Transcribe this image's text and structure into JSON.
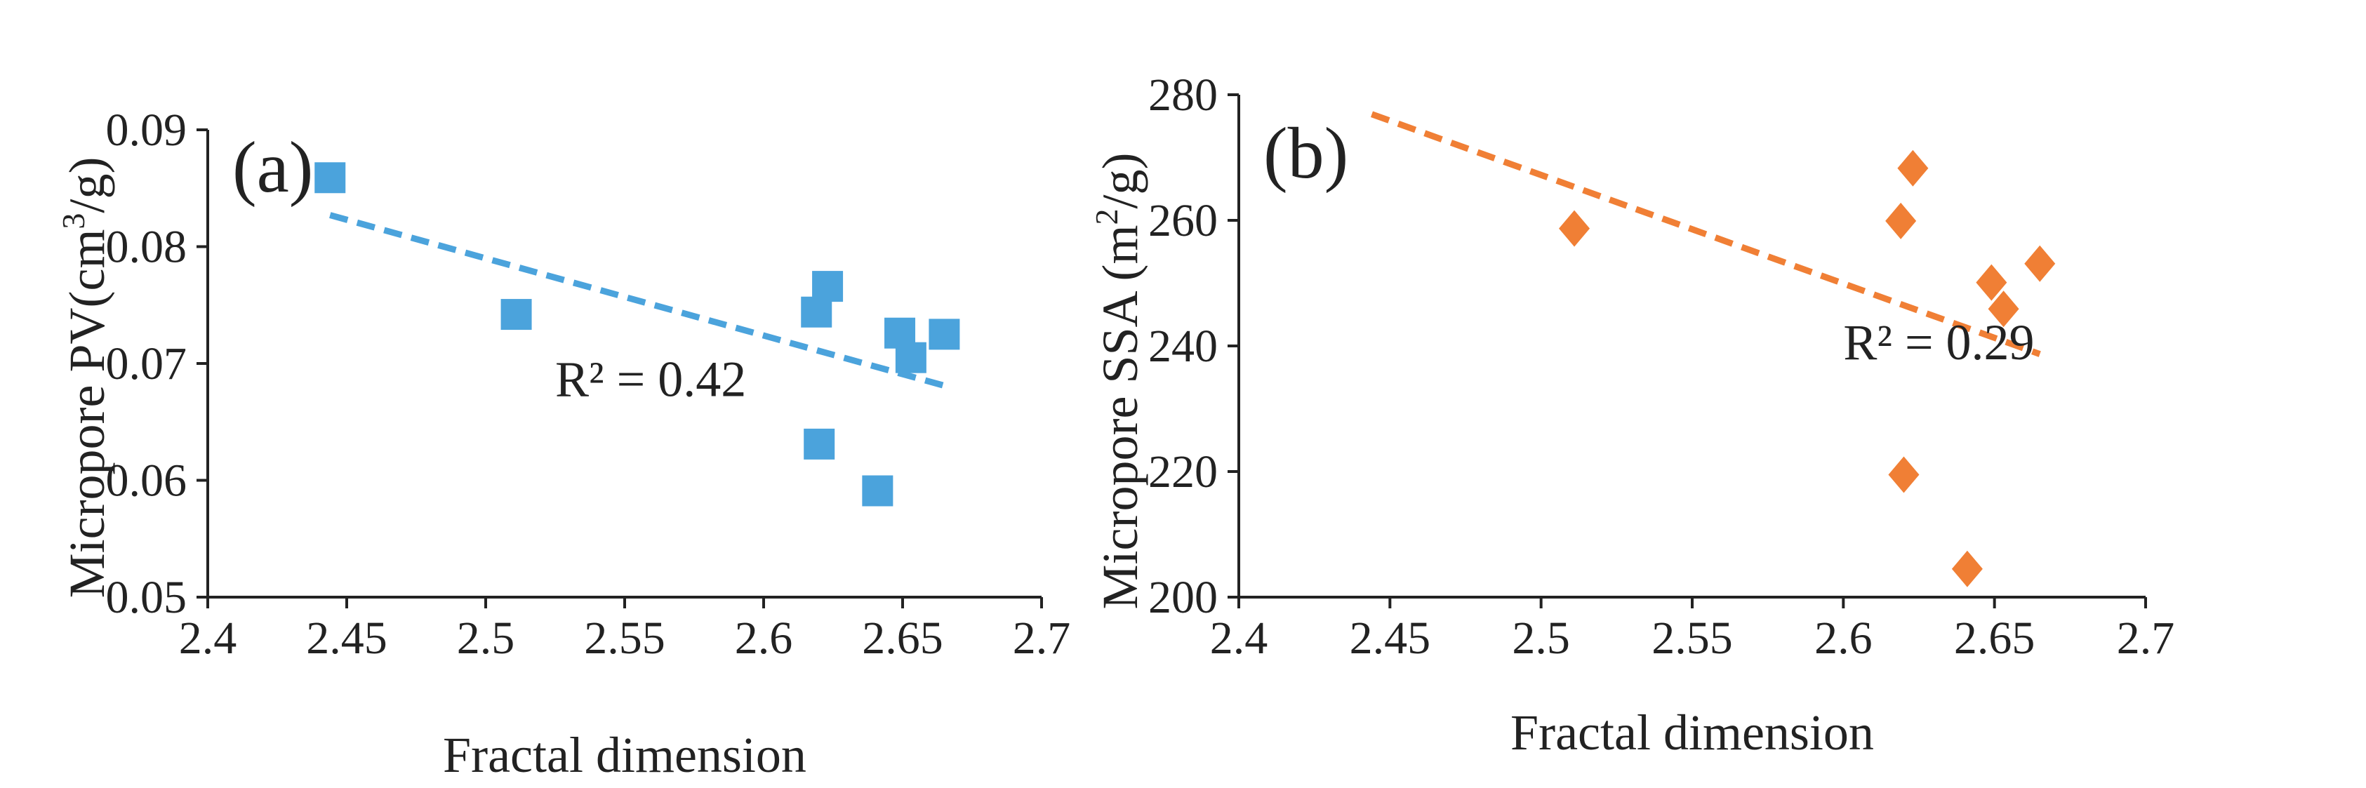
{
  "chart_data": [
    {
      "type": "scatter",
      "panel_label": "(a)",
      "xlabel": "Fractal dimension",
      "ylabel_main": "Micropore PV(cm",
      "ylabel_sup": "3",
      "ylabel_end": "/g)",
      "xlim": [
        2.4,
        2.7
      ],
      "ylim": [
        0.05,
        0.09
      ],
      "xticks": [
        2.4,
        2.45,
        2.5,
        2.55,
        2.6,
        2.65,
        2.7
      ],
      "xtick_labels": [
        "2.4",
        "2.45",
        "2.5",
        "2.55",
        "2.6",
        "2.65",
        "2.7"
      ],
      "yticks": [
        0.05,
        0.06,
        0.07,
        0.08,
        0.09
      ],
      "ytick_labels": [
        "0.05",
        "0.06",
        "0.07",
        "0.08",
        "0.09"
      ],
      "marker": "square",
      "color": "#4BA3DC",
      "points": [
        {
          "x": 2.444,
          "y": 0.0859
        },
        {
          "x": 2.511,
          "y": 0.0742
        },
        {
          "x": 2.619,
          "y": 0.0744
        },
        {
          "x": 2.623,
          "y": 0.0766
        },
        {
          "x": 2.62,
          "y": 0.0631
        },
        {
          "x": 2.641,
          "y": 0.0591
        },
        {
          "x": 2.649,
          "y": 0.0726
        },
        {
          "x": 2.653,
          "y": 0.0705
        },
        {
          "x": 2.665,
          "y": 0.0725
        }
      ],
      "trendline": {
        "x": [
          2.444,
          2.665
        ],
        "y": [
          0.0827,
          0.0681
        ]
      },
      "r2_text": "R² = 0.42",
      "r2_anchor": {
        "x": 2.525,
        "y": 0.0672
      }
    },
    {
      "type": "scatter",
      "panel_label": "(b)",
      "xlabel": "Fractal dimension",
      "ylabel_main": "Micropore SSA (m",
      "ylabel_sup": "2",
      "ylabel_end": "/g)",
      "xlim": [
        2.4,
        2.7
      ],
      "ylim": [
        200,
        280
      ],
      "xticks": [
        2.4,
        2.45,
        2.5,
        2.55,
        2.6,
        2.65,
        2.7
      ],
      "xtick_labels": [
        "2.4",
        "2.45",
        "2.5",
        "2.55",
        "2.6",
        "2.65",
        "2.7"
      ],
      "yticks": [
        200,
        220,
        240,
        260,
        280
      ],
      "ytick_labels": [
        "200",
        "220",
        "240",
        "260",
        "280"
      ],
      "marker": "diamond",
      "color": "#F07F35",
      "points": [
        {
          "x": 2.511,
          "y": 258.7
        },
        {
          "x": 2.619,
          "y": 259.9
        },
        {
          "x": 2.623,
          "y": 268.3
        },
        {
          "x": 2.62,
          "y": 219.5
        },
        {
          "x": 2.641,
          "y": 204.5
        },
        {
          "x": 2.649,
          "y": 250.1
        },
        {
          "x": 2.653,
          "y": 245.9
        },
        {
          "x": 2.665,
          "y": 253.1
        }
      ],
      "trendline": {
        "x": [
          2.444,
          2.665
        ],
        "y": [
          276.9,
          238.7
        ]
      },
      "r2_text": "R² = 0.29",
      "r2_anchor": {
        "x": 2.6,
        "y": 237.9
      }
    }
  ]
}
